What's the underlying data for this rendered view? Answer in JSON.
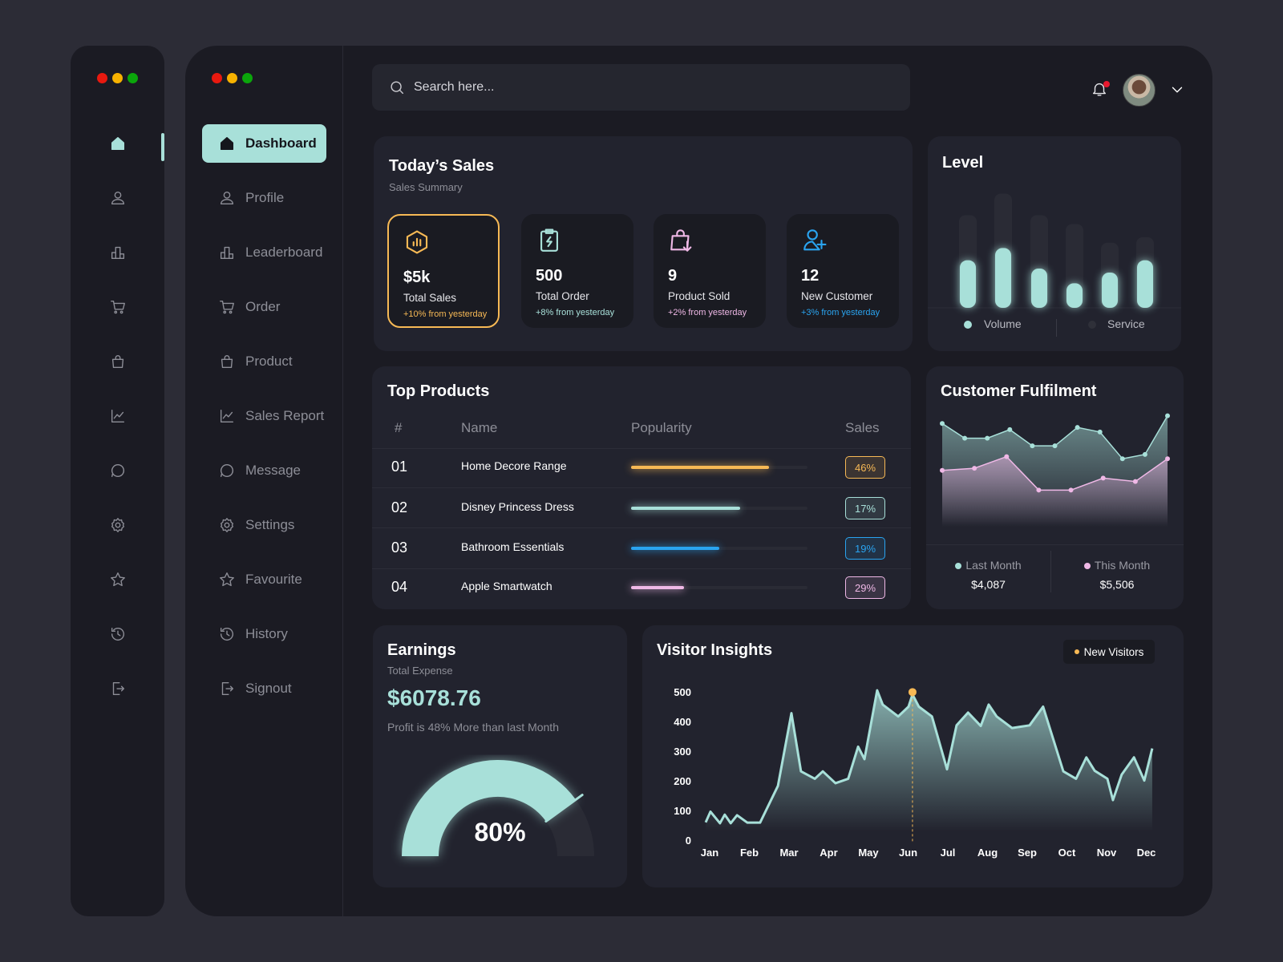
{
  "window_controls": {
    "colors": [
      "#e8190f",
      "#f7b200",
      "#0ba60b"
    ]
  },
  "header": {
    "search_placeholder": "Search here...",
    "has_notification": true
  },
  "sidebar": {
    "items": [
      {
        "label": "Dashboard",
        "icon": "home",
        "active": true
      },
      {
        "label": "Profile",
        "icon": "user"
      },
      {
        "label": "Leaderboard",
        "icon": "bars"
      },
      {
        "label": "Order",
        "icon": "cart"
      },
      {
        "label": "Product",
        "icon": "bag"
      },
      {
        "label": "Sales Report",
        "icon": "chart-line"
      },
      {
        "label": "Message",
        "icon": "chat"
      },
      {
        "label": "Settings",
        "icon": "gear"
      },
      {
        "label": "Favourite",
        "icon": "star"
      },
      {
        "label": "History",
        "icon": "history"
      },
      {
        "label": "Signout",
        "icon": "signout"
      }
    ]
  },
  "todays_sales": {
    "title": "Today’s Sales",
    "subtitle": "Sales Summary",
    "cards": [
      {
        "value": "$5k",
        "label": "Total Sales",
        "change": "+10% from yesterday",
        "color": "#f7b955",
        "icon": "hexagon-chart"
      },
      {
        "value": "500",
        "label": "Total Order",
        "change": "+8% from yesterday",
        "color": "#a8e0d9",
        "icon": "clipboard-bolt"
      },
      {
        "value": "9",
        "label": "Product Sold",
        "change": "+2% from yesterday",
        "color": "#efb8e6",
        "icon": "bag-download"
      },
      {
        "value": "12",
        "label": "New Customer",
        "change": "+3% from yesterday",
        "color": "#2aa4f0",
        "icon": "user-plus"
      }
    ]
  },
  "level": {
    "title": "Level",
    "legend": [
      "Volume",
      "Service"
    ],
    "chart_data": {
      "type": "bar",
      "series": [
        {
          "name": "Volume",
          "values": [
            155,
            195,
            128,
            80,
            115,
            155
          ]
        },
        {
          "name": "Service",
          "values": [
            302,
            372,
            302,
            273,
            212,
            230
          ]
        }
      ]
    }
  },
  "top_products": {
    "title": "Top Products",
    "columns": [
      "#",
      "Name",
      "Popularity",
      "Sales"
    ],
    "rows": [
      {
        "rank": "01",
        "name": "Home Decore Range",
        "popularity": 0.78,
        "sales": "46%",
        "color": "#f7b955"
      },
      {
        "rank": "02",
        "name": "Disney Princess Dress",
        "popularity": 0.62,
        "sales": "17%",
        "color": "#a8e0d9"
      },
      {
        "rank": "03",
        "name": "Bathroom Essentials",
        "popularity": 0.5,
        "sales": "19%",
        "color": "#2aa4f0"
      },
      {
        "rank": "04",
        "name": "Apple Smartwatch",
        "popularity": 0.3,
        "sales": "29%",
        "color": "#efb8e6"
      }
    ]
  },
  "customer_fulfilment": {
    "title": "Customer Fulfilment",
    "last_month": {
      "label": "Last Month",
      "value": "$4,087",
      "color": "#a8e0d9"
    },
    "this_month": {
      "label": "This Month",
      "value": "$5,506",
      "color": "#efb8e6"
    },
    "chart_data": {
      "type": "area",
      "series": [
        {
          "name": "Last Month",
          "values": [
            365,
            317,
            317,
            345,
            292,
            292,
            352,
            337,
            250,
            264,
            390
          ]
        },
        {
          "name": "This Month",
          "values": [
            212,
            219,
            257,
            148,
            148,
            187,
            176,
            250
          ]
        }
      ]
    }
  },
  "earnings": {
    "title": "Earnings",
    "subtitle": "Total Expense",
    "amount": "$6078.76",
    "note": "Profit is 48% More than last Month",
    "percent_label": "80%",
    "percent": 80
  },
  "visitor_insights": {
    "title": "Visitor Insights",
    "legend": "New Visitors",
    "legend_color": "#f7b955",
    "chart_data": {
      "type": "area",
      "ylim": [
        0,
        500
      ],
      "yticks": [
        0,
        100,
        200,
        300,
        400,
        500
      ],
      "categories": [
        "Jan",
        "Feb",
        "Mar",
        "Apr",
        "May",
        "Jun",
        "Jul",
        "Aug",
        "Sep",
        "Oct",
        "Nov",
        "Dec"
      ],
      "series": [
        {
          "name": "New Visitors",
          "x": [
            -0.1,
            0.02,
            0.26,
            0.38,
            0.53,
            0.69,
            0.95,
            1.27,
            1.72,
            2.06,
            2.3,
            2.65,
            2.85,
            3.17,
            3.49,
            3.74,
            3.9,
            4.22,
            4.36,
            4.75,
            5.01,
            5.11,
            5.27,
            5.6,
            5.98,
            6.22,
            6.51,
            6.83,
            7.03,
            7.23,
            7.62,
            8.06,
            8.4,
            8.91,
            9.23,
            9.49,
            9.7,
            10.02,
            10.16,
            10.38,
            10.69,
            10.95,
            11.15
          ],
          "y": [
            60,
            96,
            57,
            86,
            57,
            84,
            59,
            59,
            183,
            428,
            232,
            207,
            232,
            192,
            207,
            315,
            273,
            505,
            457,
            417,
            450,
            491,
            450,
            417,
            239,
            387,
            430,
            385,
            457,
            417,
            378,
            387,
            450,
            232,
            207,
            279,
            234,
            207,
            135,
            221,
            279,
            201,
            309
          ]
        }
      ],
      "highlight_index": 21
    }
  }
}
